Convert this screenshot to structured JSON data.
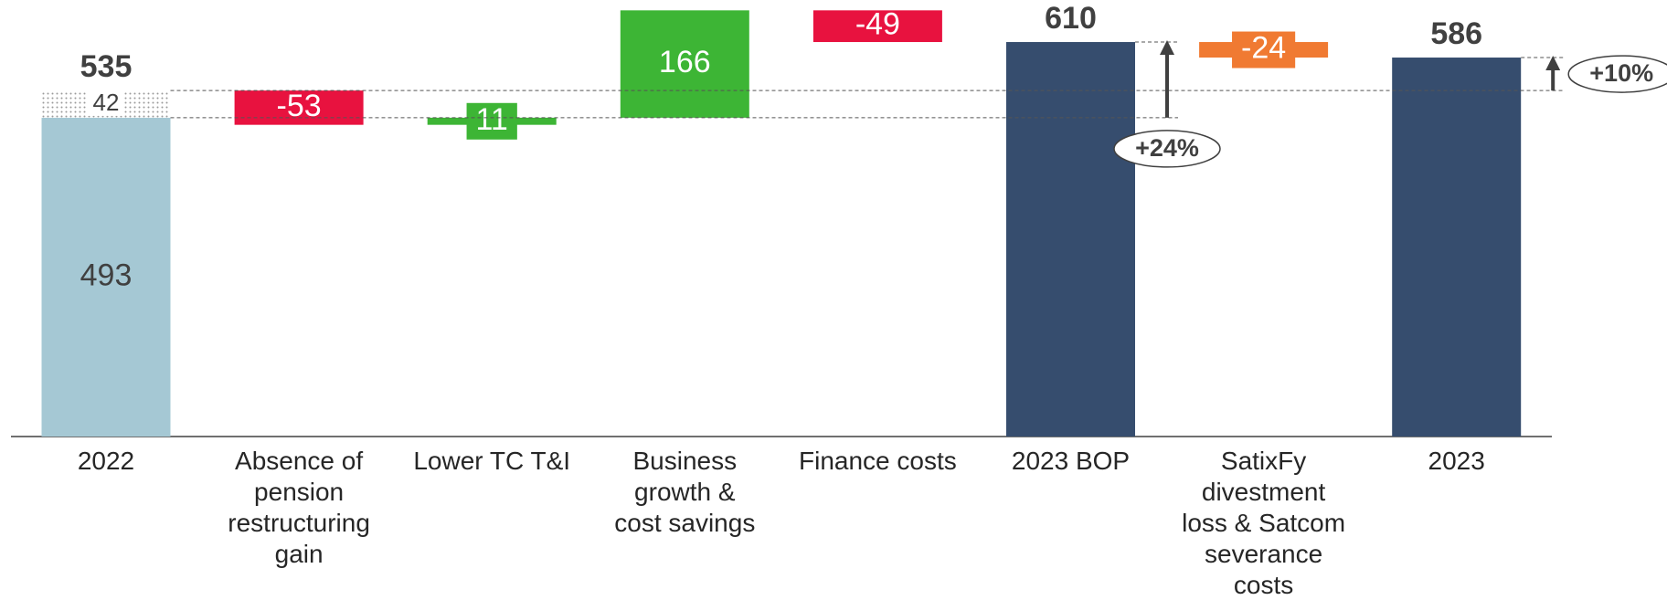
{
  "chart_data": {
    "type": "waterfall",
    "categories": [
      "2022",
      "Absence of\npension\nrestructuring\ngain",
      "Lower TC T&I",
      "Business\ngrowth &\ncost savings",
      "Finance costs",
      "2023 BOP",
      "SatixFy\ndivestment\nloss & Satcom\nseverance\ncosts",
      "2023"
    ],
    "values": [
      493,
      -53,
      11,
      166,
      -49,
      610,
      -24,
      586
    ],
    "measure": [
      "absolute",
      "relative",
      "relative",
      "relative",
      "relative",
      "absolute",
      "relative",
      "absolute"
    ],
    "colors": [
      "#a5c8d4",
      "#e8123f",
      "#3db535",
      "#3db535",
      "#e8123f",
      "#364d6e",
      "#f07a32",
      "#364d6e"
    ],
    "extra": {
      "value": 42,
      "total": 535
    },
    "ylim": [
      0,
      675
    ],
    "annotations": [
      {
        "label": "+24%",
        "from": 493,
        "to": 610,
        "position": "below"
      },
      {
        "label": "+10%",
        "from": 535,
        "to": 586,
        "position": "right"
      }
    ]
  }
}
